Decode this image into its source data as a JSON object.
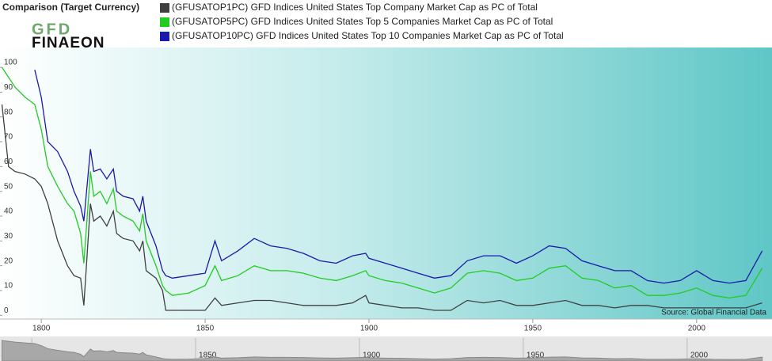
{
  "chart_data": {
    "type": "line",
    "title": "Comparison (Target Currency)",
    "logo": [
      "GFD",
      "FINAEON"
    ],
    "source": "Source: Global Financial Data",
    "x": [
      1788,
      1790,
      1792,
      1795,
      1798,
      1800,
      1802,
      1805,
      1808,
      1810,
      1812,
      1813,
      1815,
      1816,
      1818,
      1820,
      1822,
      1823,
      1825,
      1828,
      1830,
      1831,
      1832,
      1835,
      1837,
      1838,
      1840,
      1845,
      1850,
      1853,
      1855,
      1860,
      1865,
      1870,
      1875,
      1880,
      1885,
      1890,
      1895,
      1899,
      1900,
      1905,
      1910,
      1915,
      1920,
      1925,
      1930,
      1935,
      1940,
      1945,
      1950,
      1955,
      1960,
      1965,
      1970,
      1975,
      1980,
      1985,
      1990,
      1995,
      2000,
      2005,
      2010,
      2015,
      2020
    ],
    "series": [
      {
        "name": "(GFUSATOP1PC) GFD Indices United States Top Company Market Cap as PC of Total",
        "color": "#404040",
        "values": [
          85,
          60,
          58,
          57,
          55,
          52,
          45,
          30,
          20,
          16,
          15,
          4,
          45,
          38,
          40,
          36,
          42,
          33,
          31,
          30,
          26,
          30,
          18,
          15,
          10,
          2,
          2,
          2,
          2,
          7,
          4,
          5,
          6,
          6,
          5,
          4,
          4,
          4,
          5,
          8,
          5,
          4,
          3,
          3,
          2,
          2,
          6,
          5,
          6,
          4,
          4,
          5,
          6,
          4,
          4,
          3,
          4,
          4,
          3,
          3,
          3,
          3,
          3,
          3,
          5
        ]
      },
      {
        "name": "(GFUSATOP5PC) GFD Indices United States Top 5 Companies Market Cap as PC of Total",
        "color": "#22cc22",
        "values": [
          100,
          96,
          92,
          88,
          85,
          75,
          60,
          52,
          45,
          42,
          33,
          21,
          58,
          48,
          50,
          45,
          51,
          42,
          40,
          38,
          34,
          41,
          30,
          20,
          12,
          10,
          8,
          9,
          12,
          20,
          14,
          16,
          20,
          18,
          18,
          17,
          15,
          14,
          16,
          18,
          16,
          14,
          13,
          11,
          9,
          11,
          17,
          18,
          17,
          14,
          15,
          19,
          20,
          15,
          14,
          11,
          12,
          8,
          8,
          9,
          11,
          8,
          7,
          8,
          19
        ]
      },
      {
        "name": "(GFUSATOP10PC) GFD Indices United States Top 10 Companies Market Cap as PC of Total",
        "color": "#1a1aaa",
        "values": [
          null,
          null,
          null,
          null,
          99,
          88,
          70,
          66,
          58,
          50,
          44,
          38,
          67,
          58,
          59,
          55,
          59,
          50,
          48,
          47,
          42,
          48,
          38,
          28,
          18,
          16,
          15,
          16,
          17,
          30,
          22,
          26,
          31,
          28,
          27,
          25,
          22,
          21,
          24,
          25,
          23,
          21,
          19,
          17,
          15,
          16,
          22,
          24,
          24,
          21,
          24,
          28,
          27,
          22,
          20,
          18,
          18,
          14,
          13,
          14,
          18,
          14,
          13,
          14,
          26
        ]
      }
    ],
    "xlim": [
      1787.4,
      2023
    ],
    "xticks": [
      1800,
      1850,
      1900,
      1950,
      2000
    ],
    "ylim": [
      -1.5,
      108
    ],
    "yticks": [
      0,
      10,
      20,
      30,
      40,
      50,
      60,
      70,
      80,
      90,
      100
    ]
  }
}
